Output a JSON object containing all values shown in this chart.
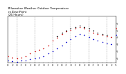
{
  "title": "Milwaukee Weather Outdoor Temperature\nvs Dew Point\n(24 Hours)",
  "title_fontsize": 3.0,
  "background_color": "#ffffff",
  "grid_color": "#888888",
  "ylim": [
    -20,
    80
  ],
  "xlim": [
    0,
    144
  ],
  "ytick_labels": [
    "6°",
    "5°",
    "4°",
    "3°",
    "2°",
    "1°"
  ],
  "ytick_positions": [
    -10,
    5,
    20,
    35,
    50,
    65
  ],
  "xtick_positions": [
    0,
    6,
    12,
    18,
    24,
    30,
    36,
    42,
    48,
    54,
    60,
    66,
    72,
    78,
    84,
    90,
    96,
    102,
    108,
    114,
    120,
    126,
    132,
    138,
    144
  ],
  "xtick_labels": [
    "8",
    "2",
    "8",
    "2",
    "8",
    "2",
    "8",
    "2",
    "8",
    "2",
    "8",
    "2",
    "8",
    "2",
    "8",
    "2",
    "8",
    "2",
    "8",
    "2",
    "8",
    "2",
    "8",
    "2",
    "5"
  ],
  "vgrid_positions": [
    12,
    36,
    60,
    84,
    108,
    132
  ],
  "temp_color": "#cc0000",
  "dew_color": "#0000cc",
  "heat_color": "#000000",
  "marker_size": 1.2,
  "temp_x": [
    0,
    6,
    12,
    18,
    24,
    30,
    36,
    42,
    48,
    54,
    60,
    66,
    72,
    78,
    84,
    90,
    96,
    102,
    108,
    114,
    120,
    126,
    132,
    138,
    144
  ],
  "temp_y": [
    -5,
    -8,
    -10,
    -8,
    -5,
    0,
    5,
    8,
    12,
    18,
    28,
    35,
    42,
    48,
    52,
    55,
    58,
    55,
    50,
    45,
    42,
    40,
    38,
    36,
    55
  ],
  "dew_x": [
    0,
    6,
    12,
    18,
    24,
    30,
    36,
    42,
    48,
    54,
    60,
    66,
    72,
    78,
    84,
    90,
    96,
    102,
    108,
    114,
    120,
    126,
    132,
    138,
    144
  ],
  "dew_y": [
    -15,
    -16,
    -17,
    -15,
    -14,
    -12,
    -10,
    -8,
    -5,
    0,
    5,
    12,
    18,
    25,
    32,
    38,
    42,
    40,
    36,
    32,
    28,
    25,
    22,
    20,
    40
  ],
  "heat_x": [
    66,
    72,
    78,
    84,
    90,
    96,
    102,
    108,
    114,
    120,
    126,
    132
  ],
  "heat_y": [
    38,
    45,
    50,
    55,
    58,
    60,
    58,
    54,
    50,
    45,
    42,
    40
  ]
}
